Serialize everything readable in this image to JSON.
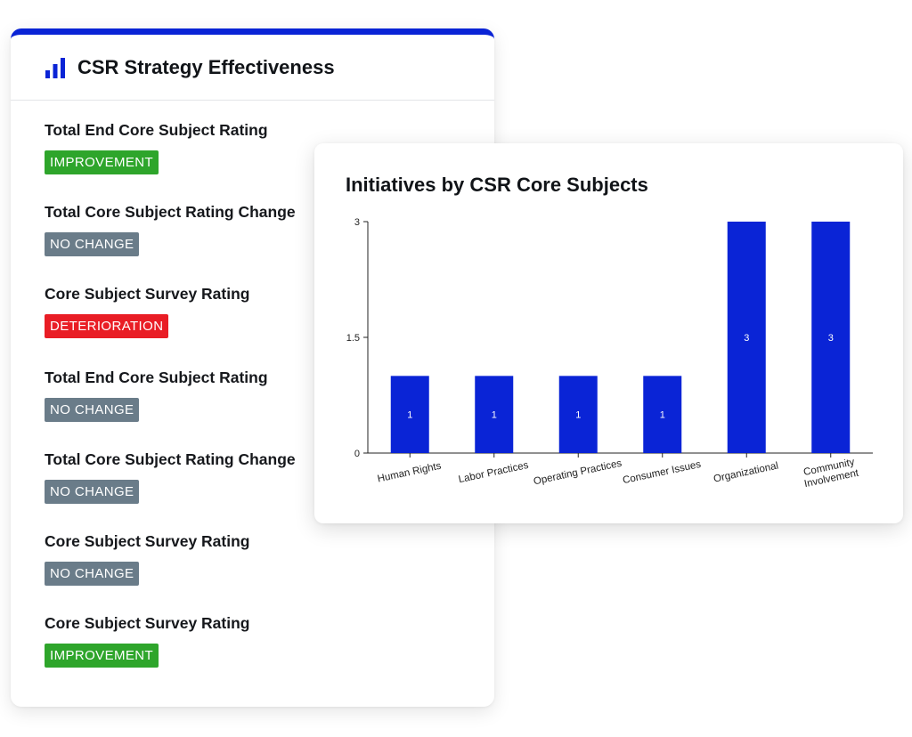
{
  "left_panel": {
    "title": "CSR Strategy Effectiveness",
    "header_icon": "bar-chart-icon",
    "accent_color": "#0a24d6",
    "metrics": [
      {
        "label": "Total End Core Subject Rating",
        "status": "IMPROVEMENT",
        "status_color": "#2ea52b"
      },
      {
        "label": "Total Core Subject Rating Change",
        "status": "NO CHANGE",
        "status_color": "#6a7c89"
      },
      {
        "label": "Core Subject Survey Rating",
        "status": "DETERIORATION",
        "status_color": "#e91d25"
      },
      {
        "label": "Total End Core Subject Rating",
        "status": "NO CHANGE",
        "status_color": "#6a7c89"
      },
      {
        "label": "Total Core Subject Rating Change",
        "status": "NO CHANGE",
        "status_color": "#6a7c89"
      },
      {
        "label": "Core Subject Survey Rating",
        "status": "NO CHANGE",
        "status_color": "#6a7c89"
      },
      {
        "label": "Core Subject Survey Rating",
        "status": "IMPROVEMENT",
        "status_color": "#2ea52b"
      }
    ]
  },
  "right_panel": {
    "title": "Initiatives by CSR Core Subjects"
  },
  "chart_data": {
    "type": "bar",
    "title": "Initiatives by CSR Core Subjects",
    "categories": [
      "Human Rights",
      "Labor Practices",
      "Operating Practices",
      "Consumer Issues",
      "Organizational",
      "Community Involvement"
    ],
    "category_lines": [
      [
        "Human Rights"
      ],
      [
        "Labor Practices"
      ],
      [
        "Operating Practices"
      ],
      [
        "Consumer Issues"
      ],
      [
        "Organizational"
      ],
      [
        "Community",
        "Involvement"
      ]
    ],
    "values": [
      1,
      1,
      1,
      1,
      3,
      3
    ],
    "data_labels": [
      "1",
      "1",
      "1",
      "1",
      "3",
      "3"
    ],
    "yticks": [
      "0",
      "1.5",
      "3"
    ],
    "ylim": [
      0,
      3
    ],
    "bar_color": "#0a24d6",
    "xlabel": "",
    "ylabel": "",
    "grid": false,
    "legend": false
  }
}
